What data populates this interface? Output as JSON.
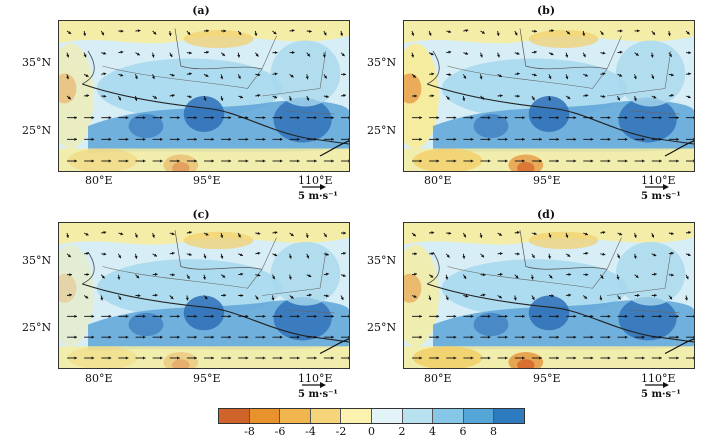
{
  "panels": [
    {
      "label": "(a)",
      "ref_vector": "5 m·s⁻¹",
      "lat_ticks": [
        "35°N",
        "25°N"
      ],
      "lon_ticks": [
        "80°E",
        "95°E",
        "110°E"
      ]
    },
    {
      "label": "(b)",
      "ref_vector": "5 m·s⁻¹",
      "lat_ticks": [
        "35°N",
        "25°N"
      ],
      "lon_ticks": [
        "80°E",
        "95°E",
        "110°E"
      ]
    },
    {
      "label": "(c)",
      "ref_vector": "5 m·s⁻¹",
      "lat_ticks": [
        "35°N",
        "25°N"
      ],
      "lon_ticks": [
        "80°E",
        "95°E",
        "110°E"
      ]
    },
    {
      "label": "(d)",
      "ref_vector": "5 m·s⁻¹",
      "lat_ticks": [
        "35°N",
        "25°N"
      ],
      "lon_ticks": [
        "80°E",
        "95°E",
        "110°E"
      ]
    }
  ],
  "colorbar": {
    "labels": [
      "-8",
      "-6",
      "-4",
      "-2",
      "0",
      "2",
      "4",
      "6",
      "8"
    ],
    "colors": [
      "#d0632a",
      "#e8922e",
      "#f0b54d",
      "#f6d57a",
      "#fbf2b0",
      "#e3f4f8",
      "#b8e1ef",
      "#86c6e6",
      "#55a6d6",
      "#2e7bbf"
    ]
  },
  "colors": {
    "deep_blue": "#2e6fb7",
    "mid_blue": "#5ea5d8",
    "light_blue": "#a8d8ee",
    "pale_blue": "#d8eef6",
    "pale_yellow": "#f6eca0",
    "yellow": "#f2cf6a",
    "orange": "#e6923a",
    "red_orange": "#d35a25"
  }
}
